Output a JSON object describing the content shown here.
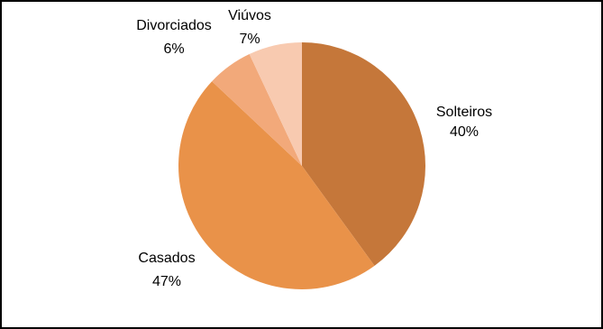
{
  "chart_data": {
    "type": "pie",
    "categories": [
      "Solteiros",
      "Casados",
      "Divorciados",
      "Viúvos"
    ],
    "values": [
      40,
      47,
      6,
      7
    ],
    "value_labels": [
      "40%",
      "47%",
      "6%",
      "7%"
    ],
    "colors": [
      "#c5773a",
      "#e99249",
      "#f2a97a",
      "#f8cab0"
    ]
  }
}
